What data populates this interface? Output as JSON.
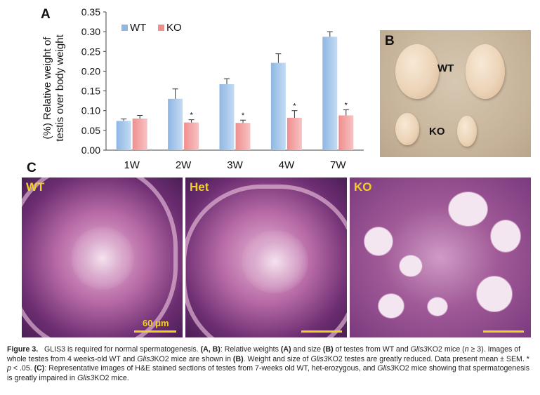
{
  "panels": {
    "a": "A",
    "b": "B",
    "c": "C"
  },
  "chart_data": {
    "type": "bar",
    "categories": [
      "1W",
      "2W",
      "3W",
      "4W",
      "7W"
    ],
    "series": [
      {
        "name": "WT",
        "values": [
          0.074,
          0.13,
          0.167,
          0.221,
          0.287
        ],
        "errors": [
          0.005,
          0.025,
          0.014,
          0.023,
          0.013
        ],
        "color": "#8fb7e3"
      },
      {
        "name": "KO",
        "values": [
          0.08,
          0.07,
          0.069,
          0.082,
          0.088
        ],
        "errors": [
          0.008,
          0.007,
          0.007,
          0.018,
          0.014
        ],
        "color": "#f08e8e"
      }
    ],
    "significance": [
      "",
      "*",
      "*",
      "*",
      "*"
    ],
    "ylabel_line1": "(%) Relative weight of",
    "ylabel_line2": "testis over body weight",
    "ylim": [
      0,
      0.35
    ],
    "yticks": [
      "0.00",
      "0.05",
      "0.10",
      "0.15",
      "0.20",
      "0.25",
      "0.30",
      "0.35"
    ],
    "legend_position": "top-left",
    "grid": false
  },
  "photo_b": {
    "wt_label": "WT",
    "ko_label": "KO"
  },
  "histology": [
    {
      "label": "WT",
      "scale_label": "60 μm"
    },
    {
      "label": "Het",
      "scale_label": ""
    },
    {
      "label": "KO",
      "scale_label": ""
    }
  ],
  "caption": {
    "fig": "Figure 3.",
    "p1": "GLIS3 is required for normal spermatogenesis.",
    "ab": "(A, B)",
    "p2": ": Relative weights",
    "a": "(A)",
    "p3": "and size",
    "b": "(B)",
    "p4": "of testes from WT and",
    "gene1": "Glis3",
    "p5": "KO2 mice (",
    "n": "n",
    "p6": "≥ 3). Images of whole testes from 4 weeks-old WT and",
    "gene2": "Glis3",
    "p7": "KO2 mice are shown in",
    "b2": "(B)",
    "p8": ". Weight and size of",
    "gene3": "Glis3",
    "p9": "KO2 testes are greatly reduced. Data present mean ± SEM. *",
    "pv": "p",
    "p10": "< .05.",
    "c": "(C)",
    "p11": ": Representative images of H&E stained sections of testes from 7-weeks old WT, het-erozygous, and",
    "gene4": "Glis3",
    "p12": "KO2 mice showing that spermatogenesis is greatly impaired in",
    "gene5": "Glis3",
    "p13": "KO2 mice."
  }
}
